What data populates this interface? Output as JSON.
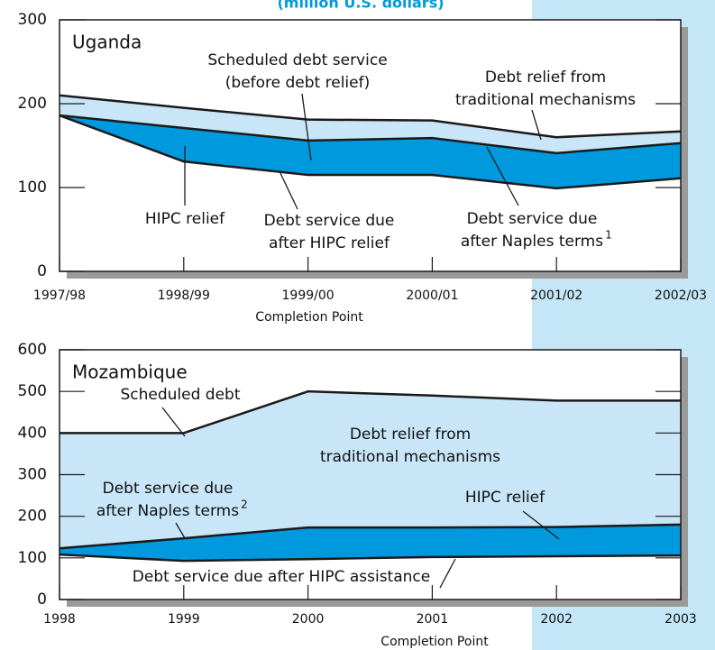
{
  "title": "(million U.S. dollars)",
  "chart_data": [
    {
      "type": "area",
      "title": "Uganda",
      "x_note": "Completion Point",
      "categories": [
        "1997/98",
        "1998/99",
        "1999/00",
        "2000/01",
        "2001/02",
        "2002/03"
      ],
      "ylim": [
        0,
        300
      ],
      "yticks": [
        0,
        100,
        200,
        300
      ],
      "series": [
        {
          "color": "#c8e6f8",
          "values": [
            210,
            195,
            181,
            180,
            160,
            167
          ]
        },
        {
          "color": "#0099dd",
          "values": [
            186,
            171,
            156,
            159,
            141,
            153
          ]
        },
        {
          "color": "#ffffff",
          "values": [
            186,
            131,
            115,
            115,
            99,
            111
          ]
        }
      ],
      "annotations": [
        {
          "lines": [
            "Scheduled debt service",
            "(before debt relief)"
          ]
        },
        {
          "lines": [
            "Debt relief from",
            "traditional mechanisms"
          ]
        },
        {
          "lines": [
            "HIPC relief"
          ]
        },
        {
          "lines": [
            "Debt service due",
            "after HIPC relief"
          ]
        },
        {
          "lines": [
            "Debt service due",
            "after Naples terms"
          ],
          "sup": "1"
        }
      ]
    },
    {
      "type": "area",
      "title": "Mozambique",
      "x_note": "Completion Point",
      "categories": [
        "1998",
        "1999",
        "2000",
        "2001",
        "2002",
        "2003"
      ],
      "ylim": [
        0,
        600
      ],
      "yticks": [
        0,
        100,
        200,
        300,
        400,
        500,
        600
      ],
      "series": [
        {
          "color": "#c8e6f8",
          "values": [
            400,
            400,
            500,
            490,
            478,
            478
          ]
        },
        {
          "color": "#0099dd",
          "values": [
            123,
            147,
            173,
            173,
            174,
            180
          ]
        },
        {
          "color": "#ffffff",
          "values": [
            108,
            93,
            97,
            102,
            104,
            106
          ]
        }
      ],
      "annotations": [
        {
          "lines": [
            "Scheduled debt"
          ]
        },
        {
          "lines": [
            "Debt relief from",
            "traditional mechanisms"
          ]
        },
        {
          "lines": [
            "Debt service due",
            "after Naples terms"
          ],
          "sup": "2"
        },
        {
          "lines": [
            "HIPC relief"
          ]
        },
        {
          "lines": [
            "Debt service due after HIPC assistance"
          ]
        }
      ]
    }
  ]
}
